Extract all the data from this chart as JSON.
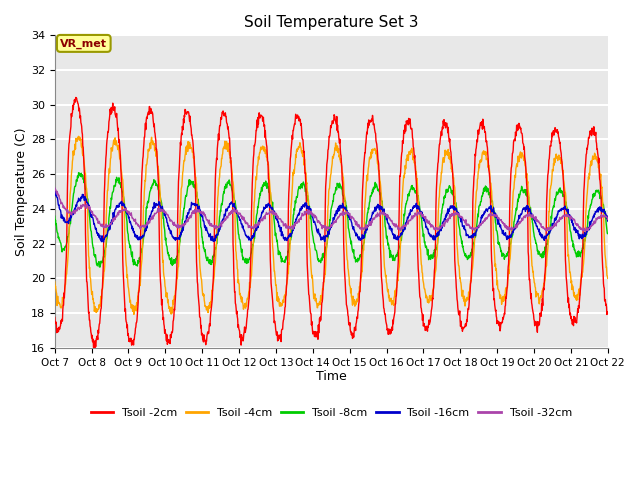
{
  "title": "Soil Temperature Set 3",
  "xlabel": "Time",
  "ylabel": "Soil Temperature (C)",
  "ylim": [
    16,
    34
  ],
  "xlim": [
    0,
    360
  ],
  "x_tick_labels": [
    "Oct 7",
    "Oct 8",
    "Oct 9",
    "Oct 10",
    "Oct 11",
    "Oct 12",
    "Oct 13",
    "Oct 14",
    "Oct 15",
    "Oct 16",
    "Oct 17",
    "Oct 18",
    "Oct 19",
    "Oct 20",
    "Oct 21",
    "Oct 22"
  ],
  "yticks": [
    16,
    18,
    20,
    22,
    24,
    26,
    28,
    30,
    32,
    34
  ],
  "colors": {
    "Tsoil -2cm": "#FF0000",
    "Tsoil -4cm": "#FFA500",
    "Tsoil -8cm": "#00CC00",
    "Tsoil -16cm": "#0000CC",
    "Tsoil -32cm": "#AA44AA"
  },
  "background_color": "#E8E8E8",
  "grid_color": "#FFFFFF",
  "annotation_text": "VR_met",
  "annotation_bg": "#FFFF99",
  "annotation_border": "#999900",
  "legend_labels": [
    "Tsoil -2cm",
    "Tsoil -4cm",
    "Tsoil -8cm",
    "Tsoil -16cm",
    "Tsoil -32cm"
  ]
}
